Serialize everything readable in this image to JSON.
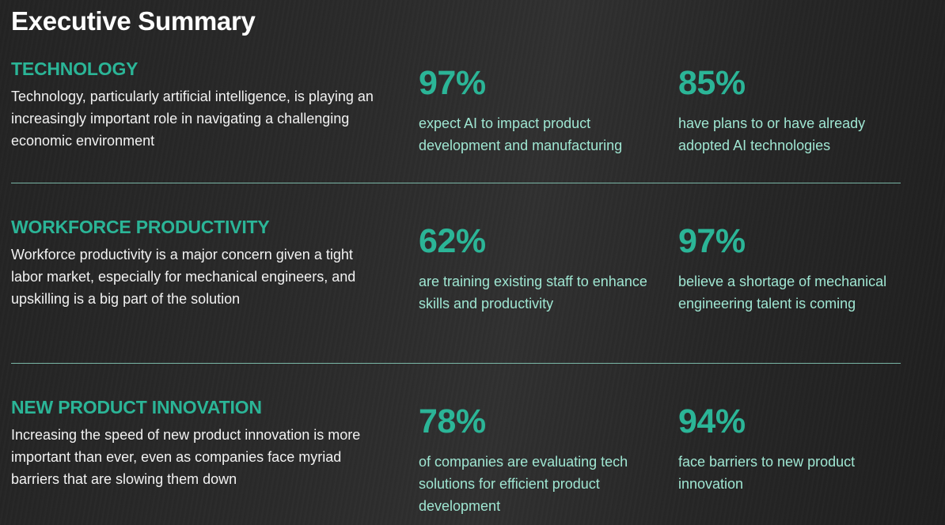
{
  "page": {
    "title": "Executive Summary"
  },
  "sections": [
    {
      "heading": "TECHNOLOGY",
      "description": "Technology, particularly artificial intelligence, is playing an increasingly important role in navigating a challenging economic environment",
      "stats": [
        {
          "value": "97%",
          "label": "expect AI to impact product development and manufacturing"
        },
        {
          "value": "85%",
          "label": "have plans to or have already adopted AI technologies"
        }
      ]
    },
    {
      "heading": "WORKFORCE PRODUCTIVITY",
      "description": "Workforce productivity is a major concern given a tight labor market, especially for mechanical engineers, and upskilling is a big part of the solution",
      "stats": [
        {
          "value": "62%",
          "label": "are training existing staff to enhance skills and productivity"
        },
        {
          "value": "97%",
          "label": "believe a shortage of mechanical engineering talent is coming"
        }
      ]
    },
    {
      "heading": "NEW PRODUCT INNOVATION",
      "description": "Increasing the speed of new product innovation is more important than ever, even as companies face myriad barriers that are slowing them down",
      "stats": [
        {
          "value": "78%",
          "label": "of companies are evaluating tech solutions for efficient product development"
        },
        {
          "value": "94%",
          "label": "face barriers to new product innovation"
        }
      ]
    }
  ],
  "colors": {
    "accent": "#2bb597",
    "stat_label": "#9fe6d2",
    "divider": "#8fd9c5",
    "background": "#2a2a2a"
  }
}
